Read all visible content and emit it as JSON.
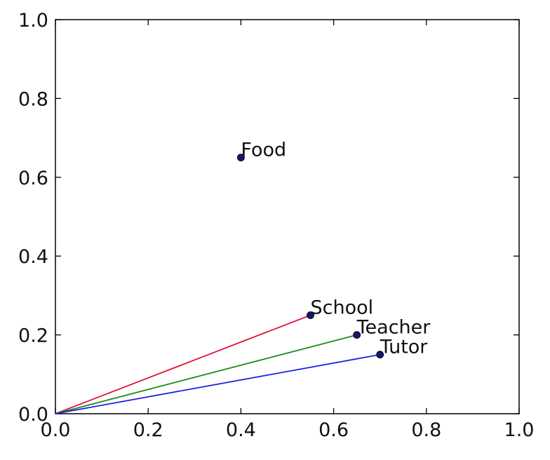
{
  "chart_data": {
    "type": "scatter",
    "title": "",
    "xlabel": "",
    "ylabel": "",
    "xlim": [
      0.0,
      1.0
    ],
    "ylim": [
      0.0,
      1.0
    ],
    "grid": false,
    "x_ticks": [
      "0.0",
      "0.2",
      "0.4",
      "0.6",
      "0.8",
      "1.0"
    ],
    "y_ticks": [
      "0.0",
      "0.2",
      "0.4",
      "0.6",
      "0.8",
      "1.0"
    ],
    "points": [
      {
        "label": "Food",
        "x": 0.4,
        "y": 0.65
      },
      {
        "label": "School",
        "x": 0.55,
        "y": 0.25
      },
      {
        "label": "Teacher",
        "x": 0.65,
        "y": 0.2
      },
      {
        "label": "Tutor",
        "x": 0.7,
        "y": 0.15
      }
    ],
    "vectors": [
      {
        "to": "School",
        "from": [
          0,
          0
        ],
        "color": "#e0143c"
      },
      {
        "to": "Teacher",
        "from": [
          0,
          0
        ],
        "color": "#1a8c1a"
      },
      {
        "to": "Tutor",
        "from": [
          0,
          0
        ],
        "color": "#2020e0"
      }
    ],
    "marker_color": "#151570"
  }
}
